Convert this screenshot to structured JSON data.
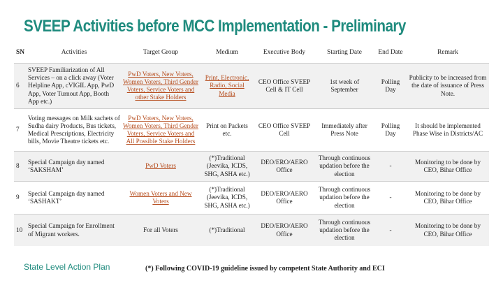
{
  "title": "SVEEP Activities before MCC Implementation - Preliminary",
  "table": {
    "headers": [
      "SN",
      "Activities",
      "Target Group",
      "Medium",
      "Executive Body",
      "Starting Date",
      "End Date",
      "Remark"
    ],
    "rows": [
      {
        "sn": "6",
        "activity": "SVEEP Familiarization of All Services – on a click away (Voter Helpline App, cVIGIL App, PwD App, Voter Turnout App, Booth App etc.)",
        "target": "PwD Voters, New Voters, Women Voters, Third Gender Voters, Service Voters and other Stake Holders",
        "medium": "Print, Electronic, Radio, Social Media",
        "executive": "CEO Office SVEEP Cell & IT Cell",
        "start": "1st week of September",
        "end": "Polling Day",
        "remark": "Publicity to be increased from the date of issuance of Press Note."
      },
      {
        "sn": "7",
        "activity": "Voting messages on Milk sachets of Sudha dairy Products, Bus tickets, Medical Prescriptions, Electricity bills, Movie Theatre tickets etc.",
        "target": "PwD Voters, New Voters, Women Voters, Third Gender Voters, Service Voters and All Possible Stake Holders",
        "medium": "Print on Packets etc.",
        "executive": "CEO Office SVEEP Cell",
        "start": "Immediately after Press Note",
        "end": "Polling Day",
        "remark": "It should be implemented Phase Wise in Districts/AC"
      },
      {
        "sn": "8",
        "activity": "Special Campaign day named ‘SAKSHAM’",
        "target": "PwD Voters",
        "medium": "(*)Traditional (Jeevika, ICDS, SHG, ASHA etc.)",
        "executive": "DEO/ERO/AERO Office",
        "start": "Through continuous updation before the election",
        "end": "-",
        "remark": "Monitoring to be done by CEO, Bihar Office"
      },
      {
        "sn": "9",
        "activity": "Special Campaign day named ‘SASHAKT’",
        "target": "Women Voters and New Voters",
        "medium": "(*)Traditional (Jeevika, ICDS, SHG, ASHA etc.)",
        "executive": "DEO/ERO/AERO Office",
        "start": "Through continuous updation before the election",
        "end": "-",
        "remark": "Monitoring to be done by CEO, Bihar Office"
      },
      {
        "sn": "10",
        "activity": "Special Campaign for Enrollment of Migrant workers.",
        "target": "For all Voters",
        "medium": "(*)Traditional",
        "executive": "DEO/ERO/AERO Office",
        "start": "Through continuous updation before the election",
        "end": "-",
        "remark": "Monitoring to be done by CEO, Bihar Office"
      }
    ]
  },
  "footer": {
    "left": "State Level Action Plan",
    "note": "(*) Following COVID-19 guideline issued by competent State Authority and ECI"
  },
  "colors": {
    "title": "#1f8b7e",
    "link": "#b54a1a",
    "row_shade": "#f1f1f1"
  }
}
